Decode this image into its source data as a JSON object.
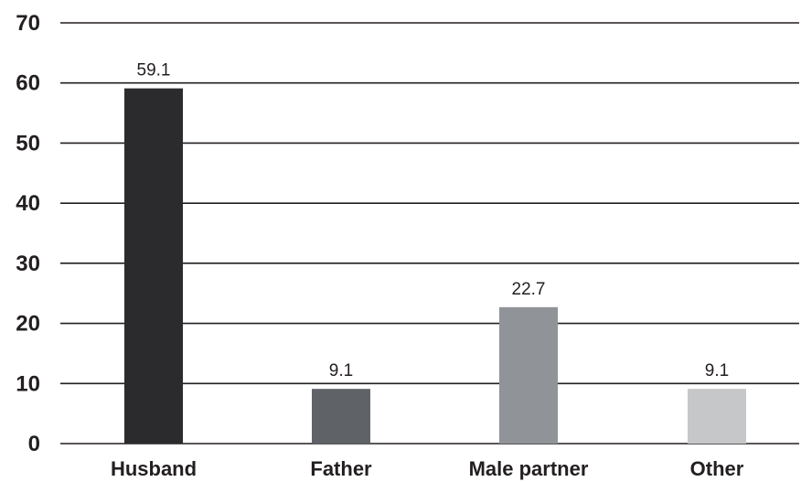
{
  "chart_data": {
    "type": "bar",
    "categories": [
      "Husband",
      "Father",
      "Male partner",
      "Other"
    ],
    "values": [
      59.1,
      9.1,
      22.7,
      9.1
    ],
    "data_labels": [
      "59.1",
      "9.1",
      "22.7",
      "9.1"
    ],
    "title": "",
    "xlabel": "",
    "ylabel": "",
    "ylim": [
      0,
      70
    ],
    "yticks": [
      0,
      10,
      20,
      30,
      40,
      50,
      60,
      70
    ],
    "grid": true,
    "legend": "none",
    "bar_colors": [
      "#2b2b2d",
      "#5f6266",
      "#909397",
      "#c6c7c9"
    ]
  }
}
